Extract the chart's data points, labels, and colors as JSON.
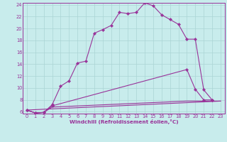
{
  "xlabel": "Windchill (Refroidissement éolien,°C)",
  "bg_color": "#c8ecec",
  "grid_color": "#aad4d4",
  "line_color": "#993399",
  "xmin": 0,
  "xmax": 23,
  "ymin": 6,
  "ymax": 24,
  "line1_x": [
    0,
    1,
    2,
    3,
    4,
    5,
    6,
    7,
    8,
    9,
    10,
    11,
    12,
    13,
    14,
    15,
    16,
    17,
    18,
    19,
    20,
    21,
    22
  ],
  "line1_y": [
    6.3,
    5.8,
    5.9,
    7.2,
    10.3,
    11.2,
    14.2,
    14.5,
    19.2,
    19.8,
    20.5,
    22.7,
    22.5,
    22.7,
    24.3,
    23.8,
    22.3,
    21.5,
    20.7,
    18.2,
    18.2,
    9.7,
    8.0
  ],
  "line2_x": [
    0,
    1,
    2,
    3,
    19,
    20,
    21,
    22
  ],
  "line2_y": [
    6.3,
    5.8,
    5.9,
    7.0,
    13.1,
    9.8,
    8.0,
    8.0
  ],
  "line3_x": [
    0,
    1,
    2,
    3,
    19,
    20,
    21,
    22,
    23
  ],
  "line3_y": [
    6.3,
    5.8,
    5.9,
    6.8,
    7.8,
    7.8,
    7.8,
    7.8,
    7.8
  ],
  "line4_x": [
    0,
    23
  ],
  "line4_y": [
    6.3,
    7.8
  ],
  "yticks": [
    6,
    8,
    10,
    12,
    14,
    16,
    18,
    20,
    22,
    24
  ],
  "xticks": [
    0,
    1,
    2,
    3,
    4,
    5,
    6,
    7,
    8,
    9,
    10,
    11,
    12,
    13,
    14,
    15,
    16,
    17,
    18,
    19,
    20,
    21,
    22,
    23
  ]
}
